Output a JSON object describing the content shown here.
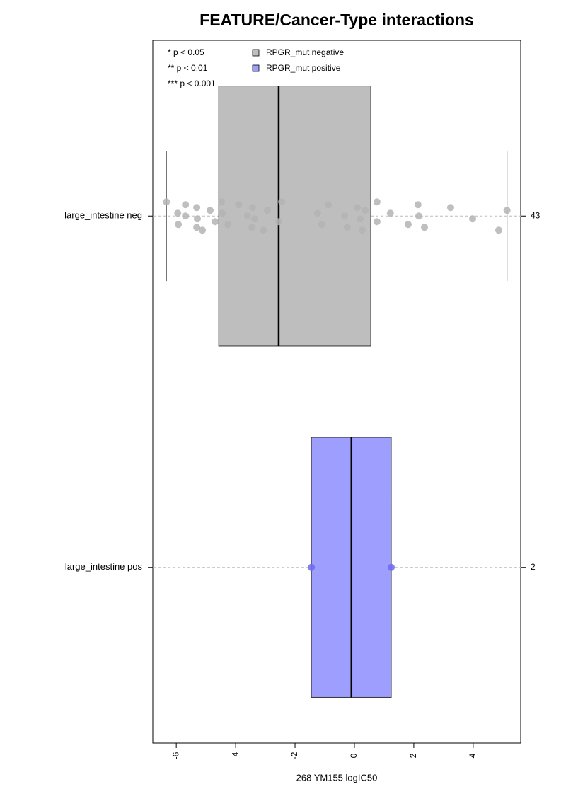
{
  "chart_data": {
    "type": "boxplot",
    "title": "FEATURE/Cancer-Type interactions",
    "x_label": "268 YM155 logIC50",
    "annotations": [
      "* p < 0.05",
      "** p < 0.01",
      "*** p < 0.001"
    ],
    "categories": [
      "large_intestine neg",
      "large_intestine pos"
    ],
    "counts": [
      43,
      2
    ],
    "xlim": [
      -6.79,
      5.6
    ],
    "xticks": [
      -6,
      -4,
      -2,
      0,
      2,
      4
    ],
    "grid": true,
    "series": [
      {
        "name": "RPGR_mut negative",
        "color": "#bebebe",
        "point_color": "#b4b4b4",
        "whisker_low": -6.33,
        "q1": -4.57,
        "median": -2.55,
        "q3": 0.55,
        "whisker_high": 5.14,
        "points": [
          -6.33,
          -5.95,
          -5.93,
          -5.69,
          -5.69,
          -5.31,
          -5.31,
          -5.29,
          -5.12,
          -4.86,
          -4.69,
          -4.48,
          -4.45,
          -4.26,
          -3.9,
          -3.6,
          -3.45,
          -3.43,
          -3.36,
          -3.07,
          -2.93,
          -2.55,
          -2.45,
          -1.24,
          -1.1,
          -0.88,
          -0.33,
          -0.24,
          0.1,
          0.19,
          0.26,
          0.36,
          0.76,
          0.76,
          1.21,
          1.81,
          2.14,
          2.17,
          2.36,
          3.24,
          3.98,
          4.86,
          5.14
        ]
      },
      {
        "name": "RPGR_mut positive",
        "color": "#9e9eff",
        "point_color": "#6a6af0",
        "whisker_low": -1.45,
        "q1": -1.45,
        "median": -0.1,
        "q3": 1.24,
        "whisker_high": 1.24,
        "points": [
          -1.45,
          1.24
        ]
      }
    ]
  }
}
